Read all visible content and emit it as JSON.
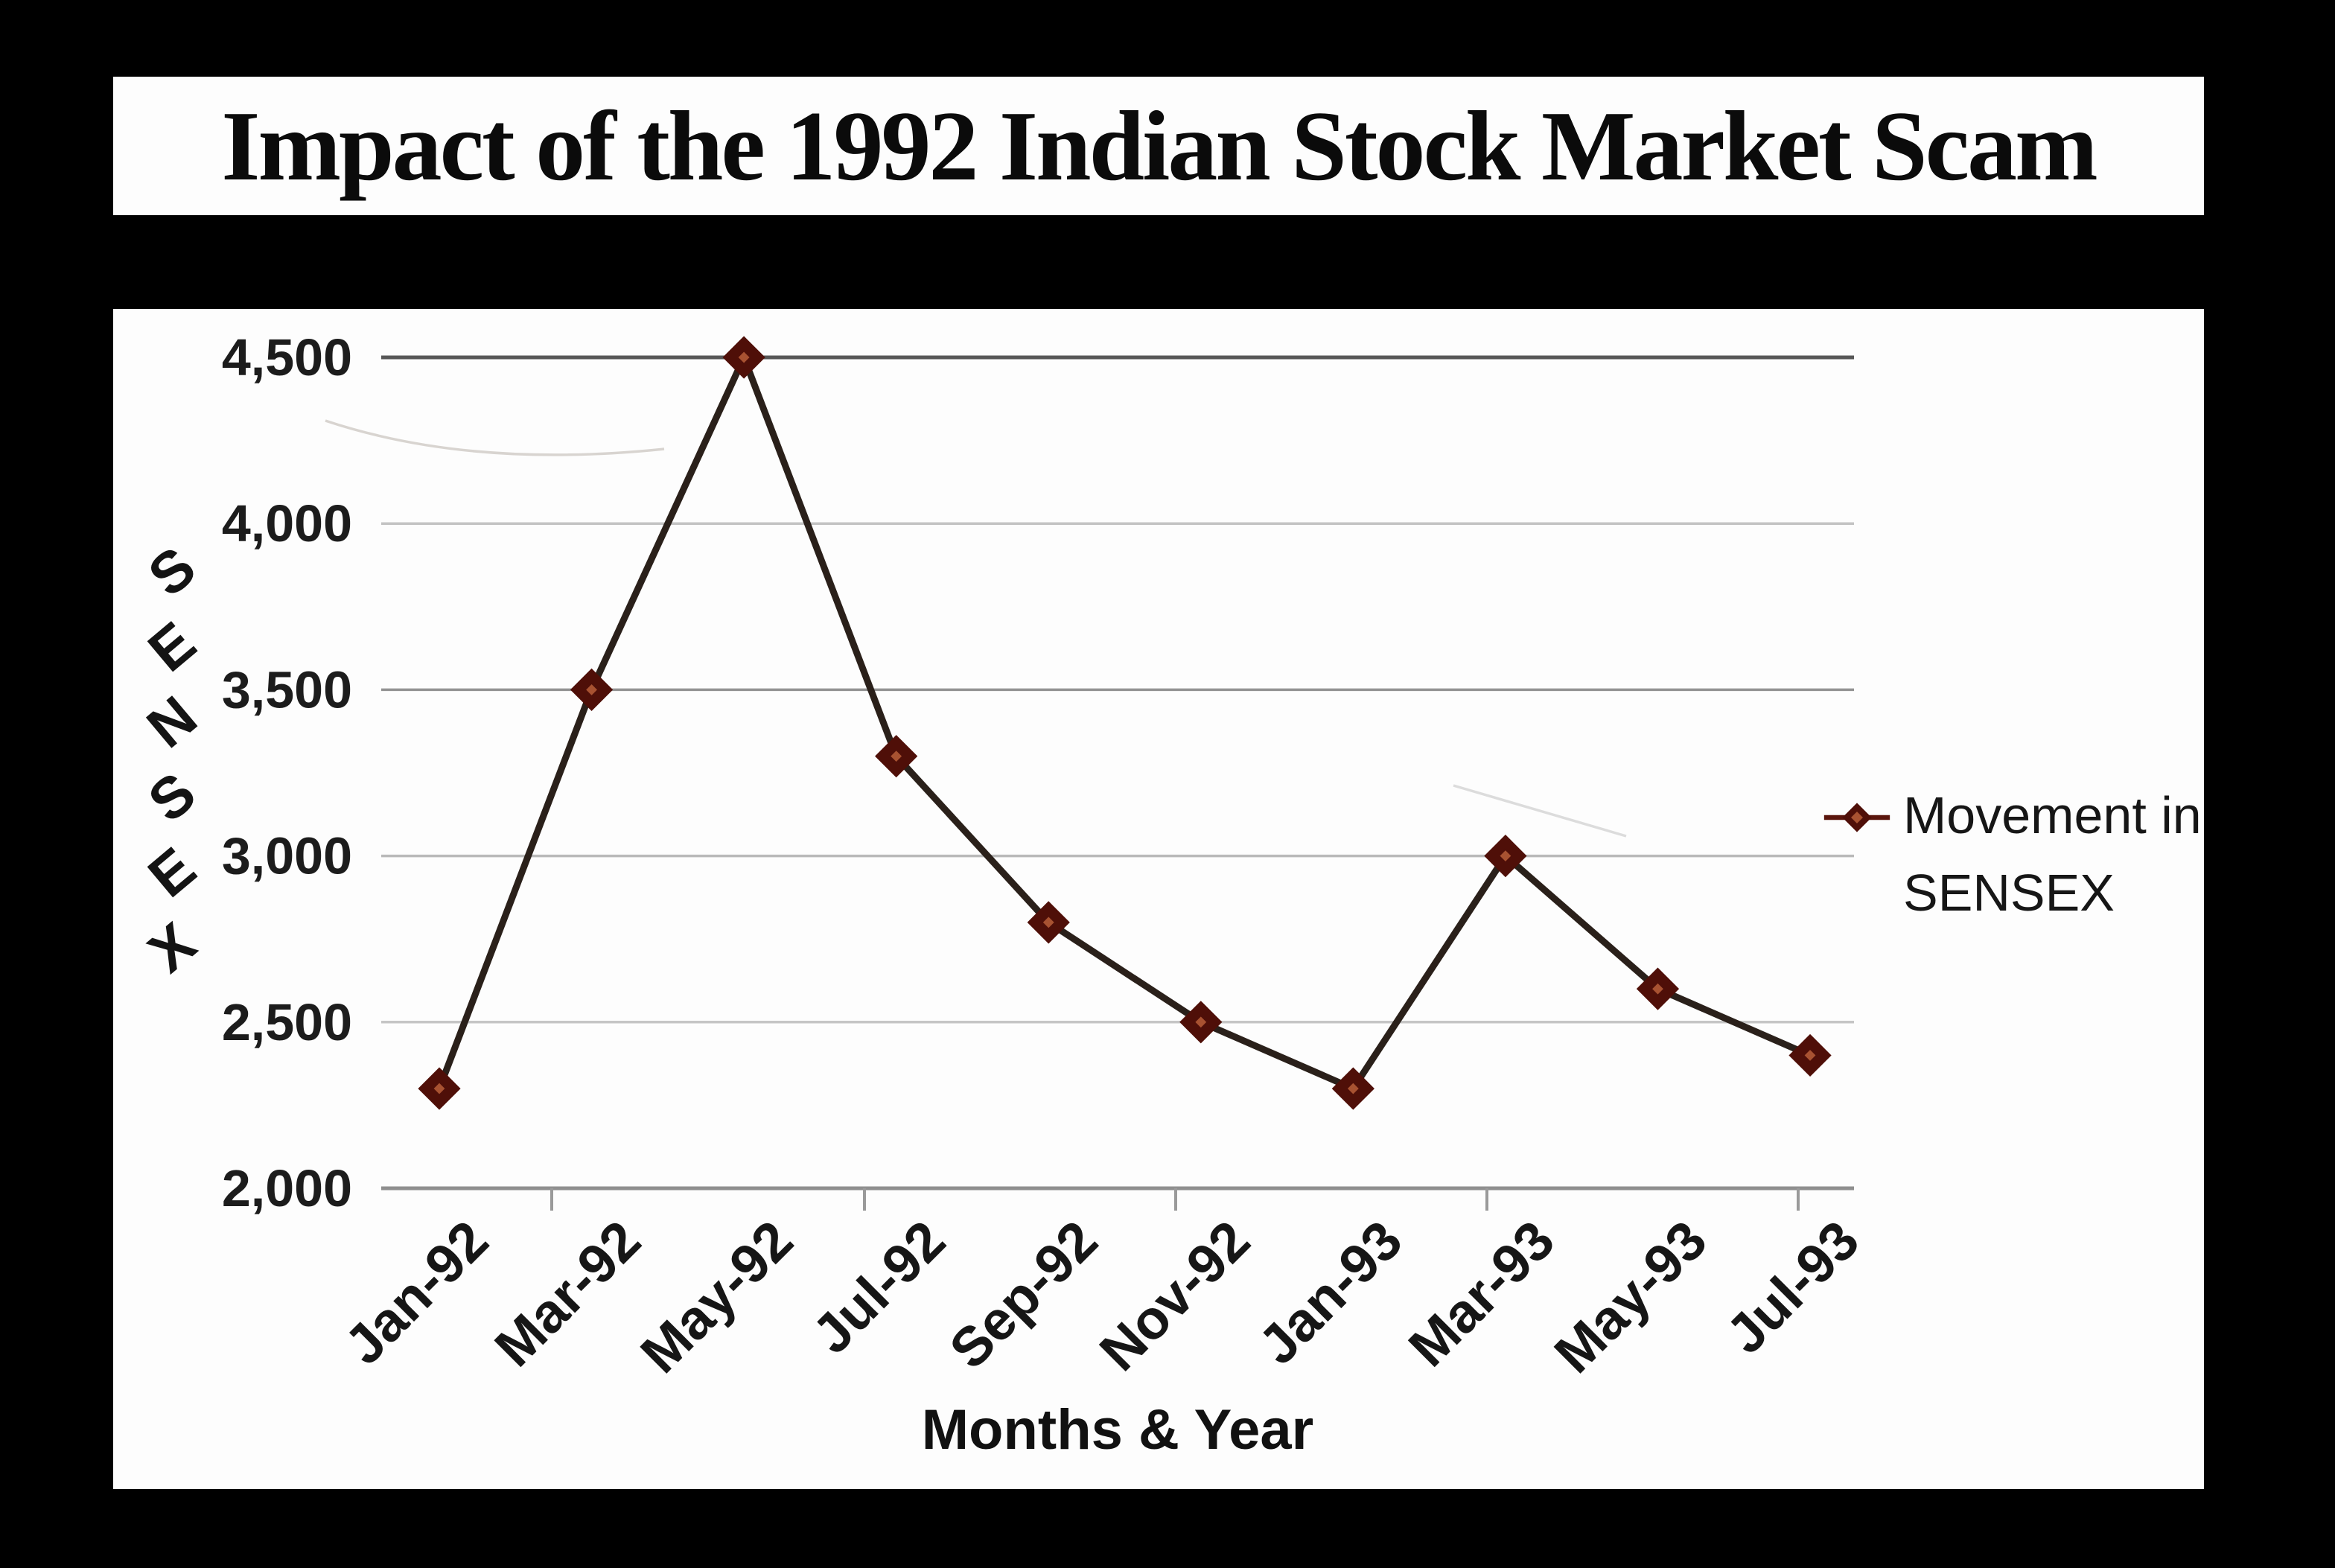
{
  "page": {
    "background": "#000000",
    "panel_background": "#fdfdfd"
  },
  "header": {
    "title": "Impact of the 1992 Indian Stock Market Scam"
  },
  "legend": {
    "lines": [
      "Movement in",
      "SENSEX"
    ]
  },
  "chart_data": {
    "type": "line",
    "title": "Impact of the 1992 Indian Stock Market Scam",
    "categories": [
      "Jan-92",
      "Mar-92",
      "May-92",
      "Jul-92",
      "Sep-92",
      "Nov-92",
      "Jan-93",
      "Mar-93",
      "May-93",
      "Jul-93"
    ],
    "series": [
      {
        "name": "Movement in SENSEX",
        "values": [
          2300,
          3500,
          4500,
          3300,
          2800,
          2500,
          2300,
          3000,
          2600,
          2400
        ]
      }
    ],
    "xlabel": "Months & Year",
    "ylabel": "SENSEX",
    "ylim": [
      2000,
      4500
    ],
    "yticks": [
      2000,
      2500,
      3000,
      3500,
      4000,
      4500
    ],
    "ytick_labels": [
      "2,000",
      "2,500",
      "3,000",
      "3,500",
      "4,000",
      "4,500"
    ],
    "grid": true,
    "legend_position": "right",
    "marker": "diamond",
    "colors": {
      "line": "#2a201a",
      "marker_fill": "#a85231",
      "marker_edge": "#4f0f08",
      "grid_light": "#c6c6c6",
      "grid_dark": "#575757",
      "axis": "#8f8f8f",
      "text": "#1c1c1c"
    }
  }
}
